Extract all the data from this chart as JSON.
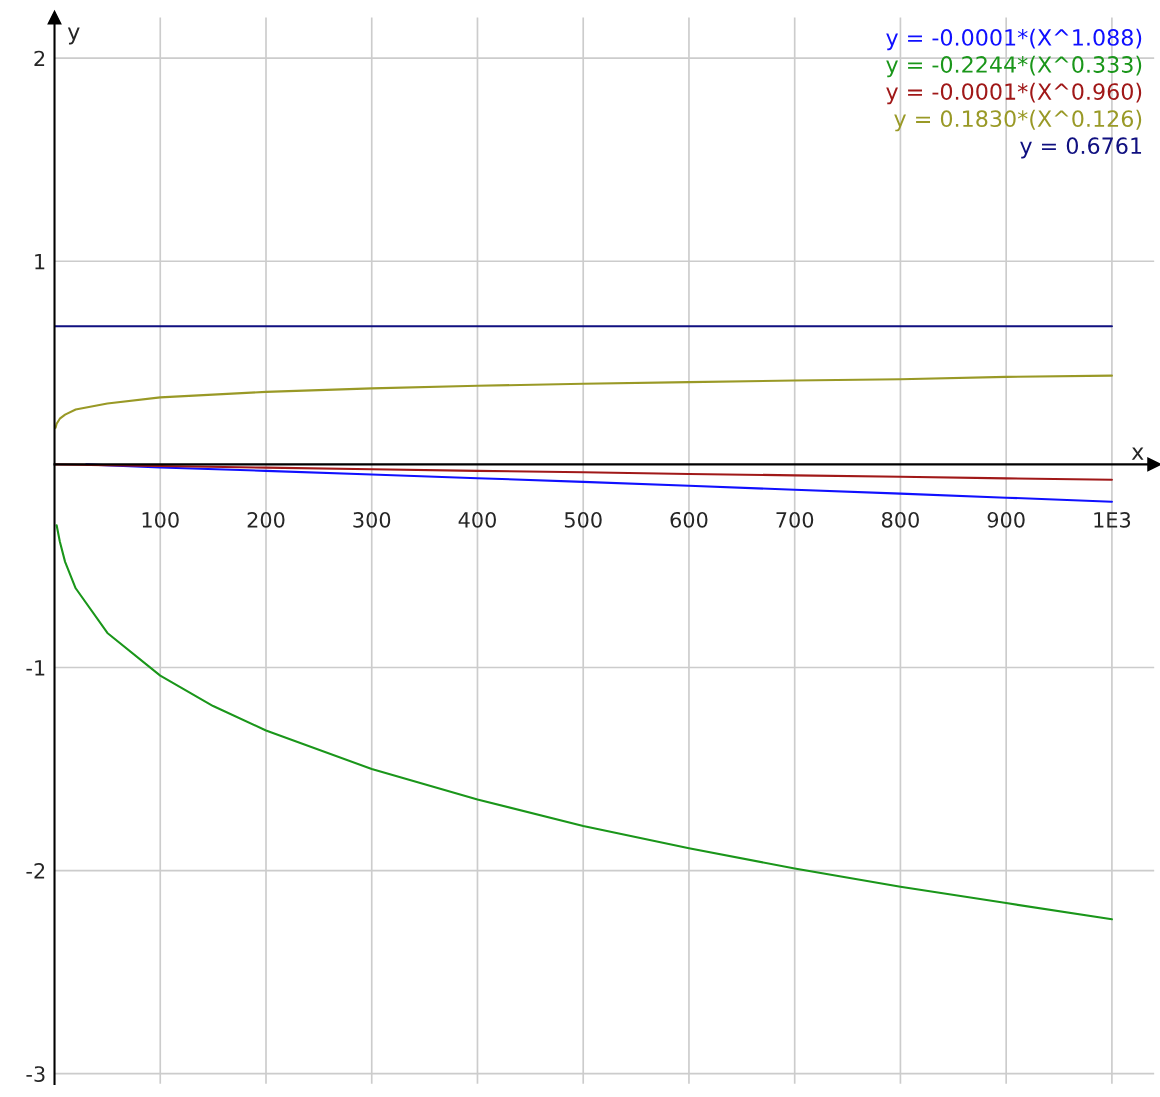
{
  "chart_data": {
    "type": "line",
    "xlabel": "x",
    "ylabel": "y",
    "legend": "top right",
    "grid": true,
    "marker": "none",
    "line_style": "solid",
    "xlim": [
      0,
      1040
    ],
    "ylim": [
      -3.05,
      2.2
    ],
    "xticks": [
      100,
      200,
      300,
      400,
      500,
      600,
      700,
      800,
      900,
      {
        "value": 1000,
        "label": "1E3"
      }
    ],
    "yticks": [
      2,
      1,
      -1,
      -2,
      -3
    ],
    "series": [
      {
        "name": "y = -0.0001*(X^1.088)",
        "color": "#1010ff",
        "x": [
          30,
          100,
          200,
          300,
          400,
          500,
          600,
          700,
          800,
          900,
          1000
        ],
        "values": [
          0,
          -0.015,
          -0.032,
          -0.05,
          -0.068,
          -0.086,
          -0.105,
          -0.125,
          -0.144,
          -0.164,
          -0.184
        ]
      },
      {
        "name": "y = -0.2244*(X^0.333)",
        "color": "#1a961a",
        "x": [
          2,
          5,
          10,
          20,
          50,
          100,
          150,
          200,
          300,
          400,
          500,
          600,
          700,
          800,
          900,
          1000
        ],
        "values": [
          -0.3,
          -0.38,
          -0.48,
          -0.61,
          -0.83,
          -1.04,
          -1.19,
          -1.31,
          -1.5,
          -1.65,
          -1.78,
          -1.89,
          -1.99,
          -2.08,
          -2.16,
          -2.24
        ]
      },
      {
        "name": "y = -0.0001*(X^0.960)",
        "color": "#a01818",
        "x": [
          0,
          100,
          200,
          300,
          400,
          500,
          600,
          700,
          800,
          900,
          1000
        ],
        "values": [
          0,
          -0.008,
          -0.016,
          -0.024,
          -0.032,
          -0.039,
          -0.047,
          -0.054,
          -0.061,
          -0.069,
          -0.076
        ]
      },
      {
        "name": "y = 0.1830*(X^0.126)",
        "color": "#999926",
        "x": [
          1,
          2,
          5,
          10,
          20,
          50,
          100,
          200,
          300,
          400,
          500,
          600,
          700,
          800,
          900,
          1000
        ],
        "values": [
          0.18,
          0.2,
          0.225,
          0.245,
          0.27,
          0.3,
          0.33,
          0.357,
          0.374,
          0.387,
          0.397,
          0.405,
          0.413,
          0.419,
          0.431,
          0.437
        ]
      },
      {
        "name": "y = 0.6761",
        "color": "#101080",
        "x": [
          0,
          1000
        ],
        "values": [
          0.68,
          0.68
        ]
      }
    ]
  }
}
